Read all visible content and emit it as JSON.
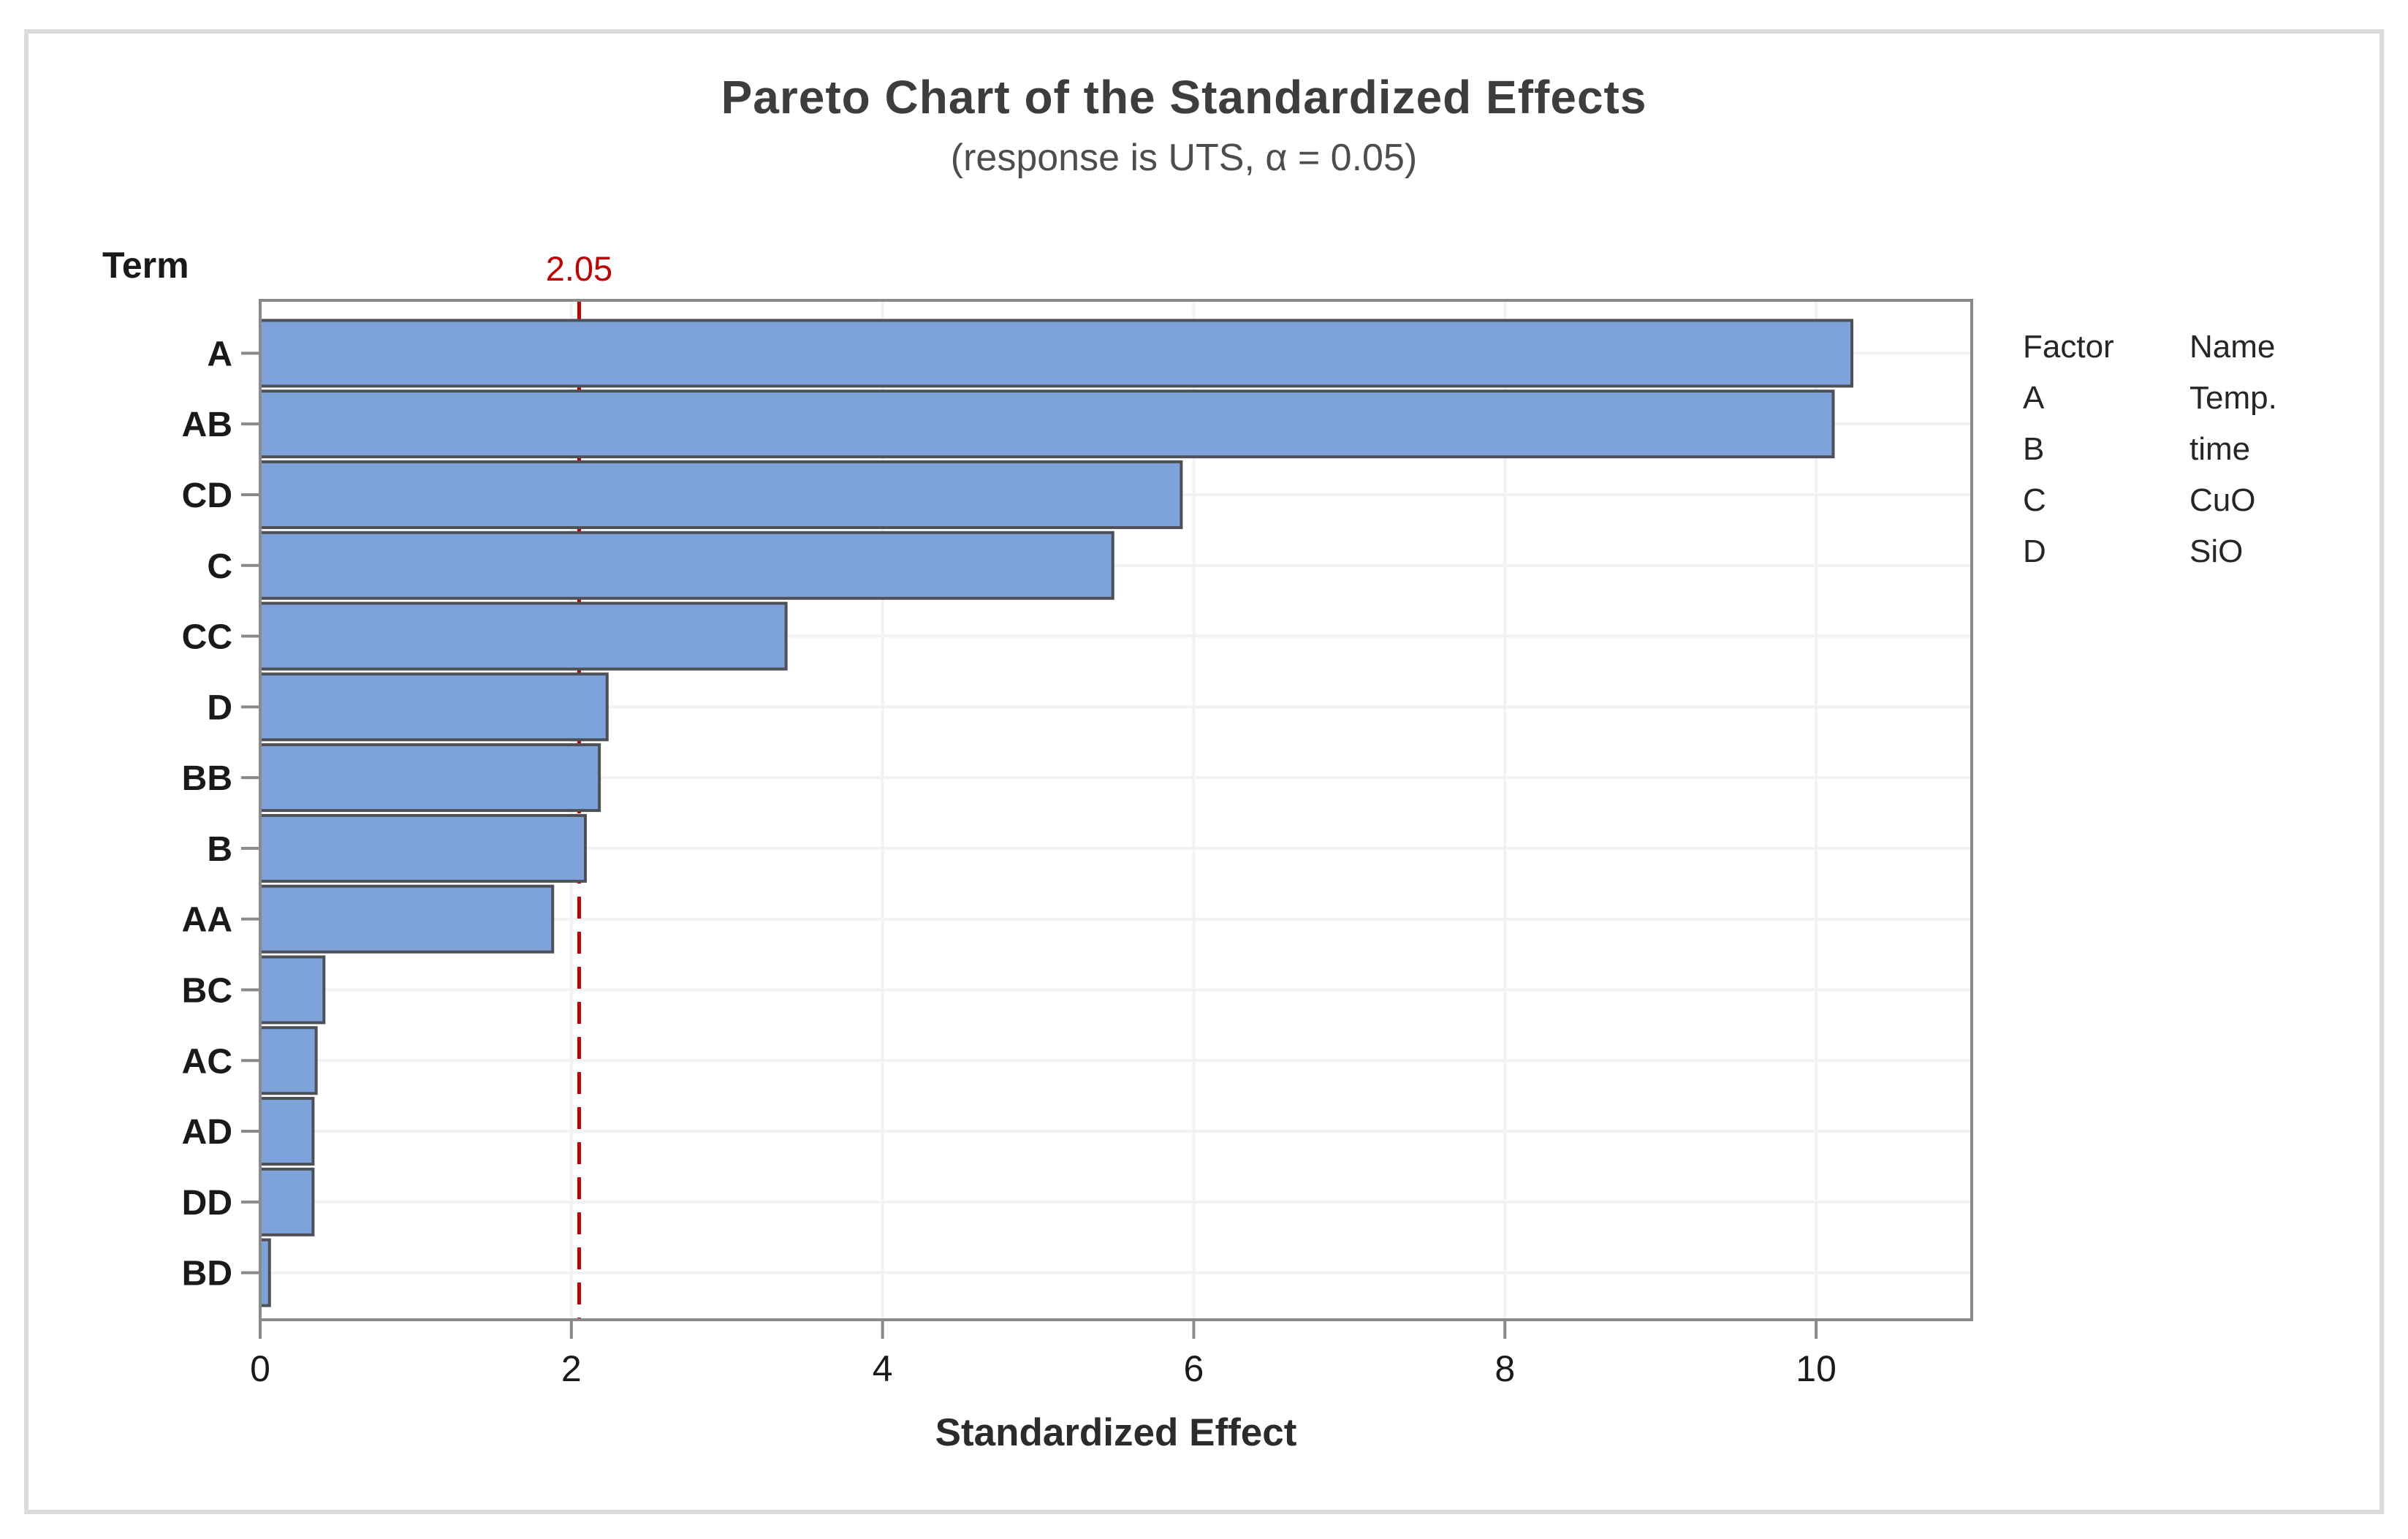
{
  "title": "Pareto Chart of the Standardized Effects",
  "subtitle": "(response is UTS, α = 0.05)",
  "y_axis_title": "Term",
  "x_axis_title": "Standardized Effect",
  "reference_line": {
    "label": "2.05",
    "value": 2.05,
    "color": "#c00000"
  },
  "legend": {
    "factor_header": "Factor",
    "name_header": "Name",
    "rows": [
      {
        "factor": "A",
        "name": "Temp."
      },
      {
        "factor": "B",
        "name": "time"
      },
      {
        "factor": "C",
        "name": "CuO"
      },
      {
        "factor": "D",
        "name": "SiO"
      }
    ]
  },
  "chart_data": {
    "type": "bar",
    "orientation": "horizontal",
    "title": "Pareto Chart of the Standardized Effects",
    "subtitle": "(response is UTS, α = 0.05)",
    "xlabel": "Standardized Effect",
    "ylabel": "Term",
    "categories": [
      "A",
      "AB",
      "CD",
      "C",
      "CC",
      "D",
      "BB",
      "B",
      "AA",
      "BC",
      "AC",
      "AD",
      "DD",
      "BD"
    ],
    "values": [
      10.23,
      10.11,
      5.92,
      5.48,
      3.38,
      2.23,
      2.18,
      2.09,
      1.88,
      0.41,
      0.36,
      0.34,
      0.34,
      0.06
    ],
    "x_ticks": [
      0,
      2,
      4,
      6,
      8,
      10
    ],
    "xlim": [
      0,
      11
    ],
    "reference_value": 2.05,
    "grid": true,
    "legend_position": "right",
    "bar_color": "#7da3da",
    "bar_border_color": "#4d5157",
    "frame_color": "#8a8a8a",
    "gridline_color": "#f2f2f2",
    "reference_color": "#c00000",
    "tick_label_color": "#1a1a1a"
  }
}
